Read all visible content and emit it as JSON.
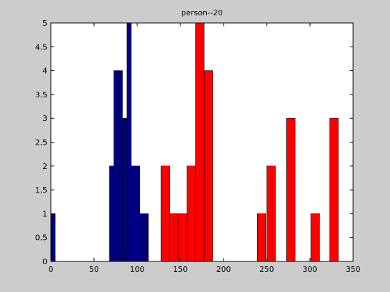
{
  "chart_data": {
    "type": "bar",
    "title": "person--20",
    "xlabel": "",
    "ylabel": "",
    "xlim": [
      0,
      350
    ],
    "ylim": [
      0,
      5
    ],
    "xticks": [
      0,
      50,
      100,
      150,
      200,
      250,
      300,
      350
    ],
    "yticks": [
      0,
      0.5,
      1,
      1.5,
      2,
      2.5,
      3,
      3.5,
      4,
      4.5,
      5
    ],
    "grid": false,
    "colors": {
      "series1": "#000080",
      "series2": "#ff0000",
      "edge": "#000000"
    },
    "series": [
      {
        "bin_width": 5,
        "bars": [
          {
            "x": 2.5,
            "value": 1
          },
          {
            "x": 70.5,
            "value": 2
          },
          {
            "x": 75.5,
            "value": 4
          },
          {
            "x": 80.5,
            "value": 4
          },
          {
            "x": 85.5,
            "value": 3
          },
          {
            "x": 90.5,
            "value": 5
          },
          {
            "x": 95.5,
            "value": 2
          },
          {
            "x": 100.5,
            "value": 2
          },
          {
            "x": 105.5,
            "value": 1
          },
          {
            "x": 110.5,
            "value": 1
          }
        ]
      },
      {
        "bin_width": 10,
        "bars": [
          {
            "x": 132.5,
            "value": 2
          },
          {
            "x": 142.5,
            "value": 1
          },
          {
            "x": 152.5,
            "value": 1
          },
          {
            "x": 162.5,
            "value": 2
          },
          {
            "x": 172.5,
            "value": 5
          },
          {
            "x": 182.5,
            "value": 4
          },
          {
            "x": 244,
            "value": 1
          },
          {
            "x": 255,
            "value": 2
          },
          {
            "x": 278,
            "value": 3
          },
          {
            "x": 306,
            "value": 1
          },
          {
            "x": 328,
            "value": 3
          }
        ]
      }
    ]
  }
}
